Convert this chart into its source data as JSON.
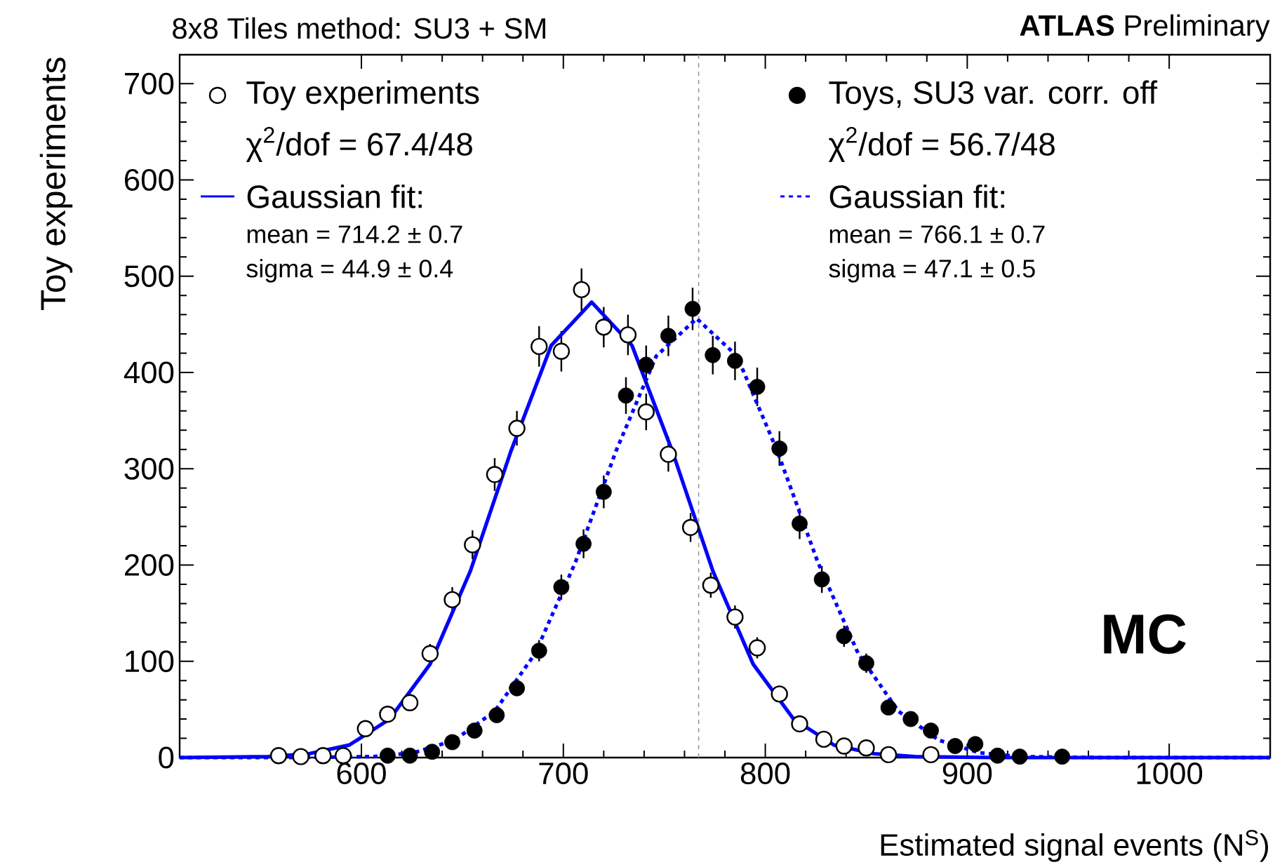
{
  "chart_data": {
    "type": "scatter",
    "title": "8x8 Tiles method: SU3 + SM",
    "xlabel": "Estimated signal events (N$^{S}$)",
    "ylabel": "Toy experiments",
    "xlim": [
      510,
      1050
    ],
    "ylim": [
      0,
      730
    ],
    "xticks": [
      600,
      700,
      800,
      900,
      1000
    ],
    "yticks": [
      0,
      100,
      200,
      300,
      400,
      500,
      600,
      700
    ],
    "legend": "top",
    "series": [
      {
        "name": "Toy experiments",
        "marker": "circle",
        "color": "#000000",
        "x": [
          559,
          570,
          581,
          591,
          602,
          613,
          624,
          634,
          645,
          655,
          666,
          677,
          688,
          699,
          709,
          720,
          732,
          741,
          752,
          763,
          773,
          785,
          796,
          807,
          817,
          829,
          839,
          850,
          861,
          882
        ],
        "values": [
          2,
          1,
          2,
          2,
          30,
          45,
          57,
          108,
          164,
          221,
          294,
          342,
          427,
          422,
          486,
          447,
          439,
          359,
          315,
          239,
          179,
          146,
          114,
          66,
          35,
          19,
          12,
          10,
          3,
          3
        ],
        "errors": [
          null,
          null,
          null,
          null,
          null,
          7,
          8,
          10,
          13,
          15,
          17,
          18,
          21,
          21,
          22,
          21,
          21,
          19,
          18,
          15,
          13,
          12,
          11,
          8,
          6,
          null,
          null,
          null,
          null,
          null
        ]
      },
      {
        "name": "Gaussian fit:",
        "type": "line",
        "marker": "none",
        "line_style": "solid",
        "color": "#0000ff",
        "x": [
          510,
          554,
          574,
          594,
          614,
          634,
          654,
          674,
          694,
          714,
          734,
          754,
          774,
          794,
          814,
          834,
          854,
          874,
          914,
          1050
        ],
        "values": [
          0,
          1,
          4,
          13,
          40,
          97,
          194,
          318,
          428,
          473,
          428,
          318,
          194,
          97,
          40,
          13,
          4,
          1,
          0,
          0
        ]
      },
      {
        "name": "Toys, SU3 var. corr. off",
        "marker": "circle",
        "color": "#000000",
        "x": [
          613,
          624,
          635,
          645,
          656,
          667,
          677,
          688,
          699,
          710,
          720,
          731,
          741,
          752,
          764,
          774,
          785,
          796,
          807,
          817,
          828,
          839,
          850,
          861,
          872,
          882,
          894,
          904,
          915,
          926,
          947
        ],
        "values": [
          2,
          2,
          6,
          16,
          28,
          44,
          72,
          111,
          177,
          222,
          276,
          376,
          408,
          438,
          466,
          418,
          412,
          385,
          321,
          243,
          185,
          126,
          98,
          52,
          40,
          28,
          12,
          14,
          2,
          1,
          1
        ],
        "errors": [
          null,
          null,
          null,
          null,
          null,
          7,
          8,
          11,
          13,
          15,
          17,
          19,
          20,
          21,
          22,
          20,
          20,
          20,
          18,
          16,
          14,
          11,
          10,
          7,
          6,
          null,
          null,
          null,
          null,
          null,
          null
        ]
      },
      {
        "name": "Gaussian fit:",
        "type": "line",
        "marker": "none",
        "line_style": "dashed",
        "color": "#0000ff",
        "x": [
          510,
          566,
          606,
          626,
          646,
          666,
          686,
          706,
          726,
          746,
          766,
          786,
          806,
          826,
          846,
          866,
          886,
          906,
          926,
          966,
          1050
        ],
        "values": [
          0,
          0,
          1,
          5,
          18,
          48,
          108,
          203,
          318,
          417,
          456,
          417,
          318,
          203,
          108,
          48,
          18,
          5,
          1,
          0,
          0
        ]
      }
    ],
    "ref_lines": [
      {
        "axis": "x",
        "value": 767,
        "color": "#999999",
        "line_style": "dashed"
      }
    ],
    "annotations": [
      "χ$^{2}$/dof = 67.4/48",
      "mean = 714.2 ± 0.7",
      "sigma = 44.9 ± 0.4",
      "χ$^{2}$/dof = 56.7/48",
      "mean = 766.1 ± 0.7",
      "sigma = 47.1 ± 0.5",
      "**ATLAS** Preliminary",
      "MC"
    ]
  }
}
